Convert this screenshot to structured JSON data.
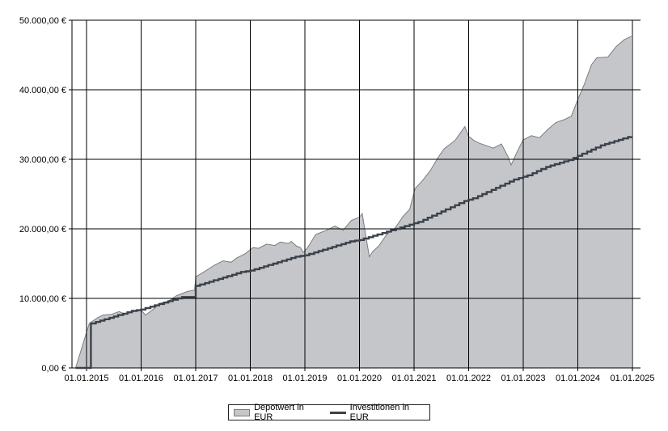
{
  "chart_data": {
    "type": "area",
    "ylim": [
      0,
      50000
    ],
    "y_ticks": [
      "0,00 €",
      "10.000,00 €",
      "20.000,00 €",
      "30.000,00 €",
      "40.000,00 €",
      "50.000,00 €"
    ],
    "y_tick_values": [
      0,
      10000,
      20000,
      30000,
      40000,
      50000
    ],
    "x_ticks": [
      "01.01.2015",
      "01.01.2016",
      "01.01.2017",
      "01.01.2018",
      "01.01.2019",
      "01.01.2020",
      "01.01.2021",
      "01.01.2022",
      "01.01.2023",
      "01.01.2024",
      "01.01.2025"
    ],
    "x_range_years": [
      2014.75,
      2025.0
    ],
    "grid": true,
    "legend_position": "bottom-center",
    "colors": {
      "area_fill": "#c4c6c9",
      "area_edge": "#7a7d80",
      "line": "#3a414a",
      "grid": "#000000"
    },
    "series": [
      {
        "name": "Depotwert in EUR",
        "kind": "area",
        "points": [
          [
            2014.8,
            0
          ],
          [
            2015.05,
            6400
          ],
          [
            2015.2,
            7200
          ],
          [
            2015.3,
            7600
          ],
          [
            2015.45,
            7700
          ],
          [
            2015.6,
            8100
          ],
          [
            2015.7,
            7700
          ],
          [
            2015.85,
            8100
          ],
          [
            2016.0,
            8300
          ],
          [
            2016.08,
            7600
          ],
          [
            2016.2,
            8300
          ],
          [
            2016.35,
            9300
          ],
          [
            2016.5,
            9600
          ],
          [
            2016.65,
            10400
          ],
          [
            2016.85,
            11000
          ],
          [
            2016.98,
            11200
          ],
          [
            2017.0,
            13100
          ],
          [
            2017.15,
            13800
          ],
          [
            2017.35,
            14800
          ],
          [
            2017.5,
            15400
          ],
          [
            2017.65,
            15200
          ],
          [
            2017.75,
            15800
          ],
          [
            2017.9,
            16400
          ],
          [
            2018.05,
            17300
          ],
          [
            2018.15,
            17200
          ],
          [
            2018.3,
            17800
          ],
          [
            2018.45,
            17600
          ],
          [
            2018.55,
            18100
          ],
          [
            2018.7,
            17900
          ],
          [
            2018.75,
            18200
          ],
          [
            2018.85,
            17500
          ],
          [
            2018.92,
            17300
          ],
          [
            2018.97,
            16600
          ],
          [
            2019.05,
            17300
          ],
          [
            2019.2,
            19200
          ],
          [
            2019.4,
            19800
          ],
          [
            2019.55,
            20400
          ],
          [
            2019.7,
            19800
          ],
          [
            2019.85,
            21200
          ],
          [
            2020.0,
            21700
          ],
          [
            2020.05,
            22200
          ],
          [
            2020.12,
            18800
          ],
          [
            2020.18,
            16000
          ],
          [
            2020.25,
            16800
          ],
          [
            2020.35,
            17500
          ],
          [
            2020.5,
            19200
          ],
          [
            2020.65,
            20100
          ],
          [
            2020.8,
            21800
          ],
          [
            2020.92,
            22800
          ],
          [
            2021.02,
            25800
          ],
          [
            2021.15,
            26900
          ],
          [
            2021.3,
            28400
          ],
          [
            2021.45,
            30400
          ],
          [
            2021.55,
            31500
          ],
          [
            2021.75,
            32700
          ],
          [
            2021.93,
            34700
          ],
          [
            2022.0,
            33300
          ],
          [
            2022.1,
            32700
          ],
          [
            2022.2,
            32300
          ],
          [
            2022.35,
            31900
          ],
          [
            2022.45,
            31600
          ],
          [
            2022.6,
            32200
          ],
          [
            2022.72,
            30400
          ],
          [
            2022.78,
            29200
          ],
          [
            2022.9,
            31300
          ],
          [
            2023.0,
            32800
          ],
          [
            2023.15,
            33400
          ],
          [
            2023.3,
            33100
          ],
          [
            2023.45,
            34300
          ],
          [
            2023.6,
            35300
          ],
          [
            2023.75,
            35700
          ],
          [
            2023.88,
            36200
          ],
          [
            2024.0,
            38600
          ],
          [
            2024.12,
            40800
          ],
          [
            2024.25,
            43600
          ],
          [
            2024.35,
            44600
          ],
          [
            2024.55,
            44700
          ],
          [
            2024.7,
            46200
          ],
          [
            2024.85,
            47200
          ],
          [
            2024.98,
            47700
          ]
        ]
      },
      {
        "name": "Investitionen in EUR",
        "kind": "step",
        "points": [
          [
            2014.8,
            0
          ],
          [
            2015.08,
            0
          ],
          [
            2015.08,
            6400
          ],
          [
            2015.17,
            6600
          ],
          [
            2015.25,
            6800
          ],
          [
            2015.33,
            7000
          ],
          [
            2015.42,
            7200
          ],
          [
            2015.5,
            7400
          ],
          [
            2015.58,
            7600
          ],
          [
            2015.67,
            7800
          ],
          [
            2015.75,
            8000
          ],
          [
            2015.83,
            8200
          ],
          [
            2015.92,
            8300
          ],
          [
            2016.0,
            8400
          ],
          [
            2016.08,
            8600
          ],
          [
            2016.17,
            8800
          ],
          [
            2016.25,
            9000
          ],
          [
            2016.33,
            9200
          ],
          [
            2016.42,
            9400
          ],
          [
            2016.5,
            9600
          ],
          [
            2016.58,
            9800
          ],
          [
            2016.67,
            10000
          ],
          [
            2016.75,
            10200
          ],
          [
            2016.83,
            10200
          ],
          [
            2016.92,
            10200
          ],
          [
            2017.0,
            11800
          ],
          [
            2017.08,
            12000
          ],
          [
            2017.17,
            12200
          ],
          [
            2017.25,
            12400
          ],
          [
            2017.33,
            12600
          ],
          [
            2017.42,
            12800
          ],
          [
            2017.5,
            13000
          ],
          [
            2017.58,
            13200
          ],
          [
            2017.67,
            13400
          ],
          [
            2017.75,
            13600
          ],
          [
            2017.83,
            13800
          ],
          [
            2017.92,
            13900
          ],
          [
            2018.0,
            14000
          ],
          [
            2018.08,
            14200
          ],
          [
            2018.17,
            14400
          ],
          [
            2018.25,
            14600
          ],
          [
            2018.33,
            14800
          ],
          [
            2018.42,
            15000
          ],
          [
            2018.5,
            15200
          ],
          [
            2018.58,
            15400
          ],
          [
            2018.67,
            15600
          ],
          [
            2018.75,
            15800
          ],
          [
            2018.83,
            16000
          ],
          [
            2018.92,
            16100
          ],
          [
            2019.0,
            16200
          ],
          [
            2019.08,
            16400
          ],
          [
            2019.17,
            16600
          ],
          [
            2019.25,
            16800
          ],
          [
            2019.33,
            17000
          ],
          [
            2019.42,
            17200
          ],
          [
            2019.5,
            17400
          ],
          [
            2019.58,
            17600
          ],
          [
            2019.67,
            17800
          ],
          [
            2019.75,
            18000
          ],
          [
            2019.83,
            18200
          ],
          [
            2019.92,
            18300
          ],
          [
            2020.0,
            18400
          ],
          [
            2020.08,
            18600
          ],
          [
            2020.17,
            18800
          ],
          [
            2020.25,
            19000
          ],
          [
            2020.33,
            19200
          ],
          [
            2020.42,
            19400
          ],
          [
            2020.5,
            19600
          ],
          [
            2020.58,
            19800
          ],
          [
            2020.67,
            20000
          ],
          [
            2020.75,
            20200
          ],
          [
            2020.83,
            20400
          ],
          [
            2020.92,
            20600
          ],
          [
            2021.0,
            20800
          ],
          [
            2021.08,
            21000
          ],
          [
            2021.17,
            21300
          ],
          [
            2021.25,
            21600
          ],
          [
            2021.33,
            21900
          ],
          [
            2021.42,
            22200
          ],
          [
            2021.5,
            22500
          ],
          [
            2021.58,
            22800
          ],
          [
            2021.67,
            23100
          ],
          [
            2021.75,
            23400
          ],
          [
            2021.83,
            23700
          ],
          [
            2021.92,
            24000
          ],
          [
            2022.0,
            24200
          ],
          [
            2022.08,
            24400
          ],
          [
            2022.17,
            24700
          ],
          [
            2022.25,
            25000
          ],
          [
            2022.33,
            25300
          ],
          [
            2022.42,
            25600
          ],
          [
            2022.5,
            25900
          ],
          [
            2022.58,
            26200
          ],
          [
            2022.67,
            26500
          ],
          [
            2022.75,
            26800
          ],
          [
            2022.83,
            27100
          ],
          [
            2022.92,
            27300
          ],
          [
            2023.0,
            27500
          ],
          [
            2023.08,
            27700
          ],
          [
            2023.17,
            28000
          ],
          [
            2023.25,
            28300
          ],
          [
            2023.33,
            28600
          ],
          [
            2023.42,
            28900
          ],
          [
            2023.5,
            29100
          ],
          [
            2023.58,
            29300
          ],
          [
            2023.67,
            29500
          ],
          [
            2023.75,
            29700
          ],
          [
            2023.83,
            29900
          ],
          [
            2023.92,
            30200
          ],
          [
            2024.0,
            30500
          ],
          [
            2024.08,
            30800
          ],
          [
            2024.17,
            31100
          ],
          [
            2024.25,
            31400
          ],
          [
            2024.33,
            31700
          ],
          [
            2024.42,
            32000
          ],
          [
            2024.5,
            32200
          ],
          [
            2024.58,
            32400
          ],
          [
            2024.67,
            32600
          ],
          [
            2024.75,
            32800
          ],
          [
            2024.83,
            33000
          ],
          [
            2024.92,
            33200
          ],
          [
            2024.98,
            33300
          ]
        ]
      }
    ]
  }
}
